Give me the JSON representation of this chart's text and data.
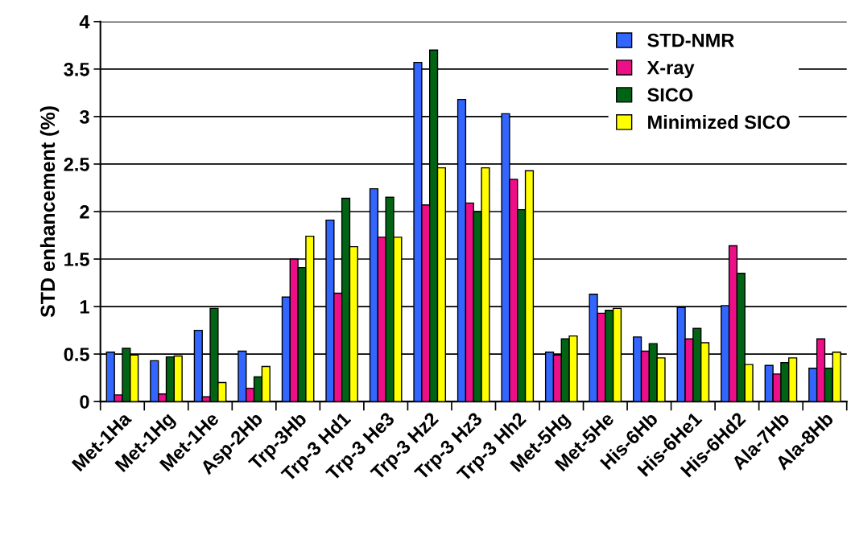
{
  "chart_data": {
    "type": "bar",
    "ylabel": "STD enhancement (%)",
    "categories": [
      "Met-1Ha",
      "Met-1Hg",
      "Met-1He",
      "Asp-2Hb",
      "Trp-3Hb",
      "Trp-3 Hd1",
      "Trp-3 He3",
      "Trp-3 Hz2",
      "Trp-3 Hz3",
      "Trp-3 Hh2",
      "Met-5Hg",
      "Met-5He",
      "His-6Hb",
      "His-6He1",
      "His-6Hd2",
      "Ala-7Hb",
      "Ala-8Hb"
    ],
    "series": [
      {
        "name": "STD-NMR",
        "color": "#3366ff",
        "values": [
          0.52,
          0.43,
          0.75,
          0.53,
          1.1,
          1.91,
          2.24,
          3.57,
          3.18,
          3.03,
          0.52,
          1.13,
          0.68,
          0.99,
          1.01,
          0.38,
          0.35
        ]
      },
      {
        "name": "X-ray",
        "color": "#ee0f88",
        "values": [
          0.07,
          0.08,
          0.05,
          0.14,
          1.5,
          1.14,
          1.73,
          2.07,
          2.09,
          2.34,
          0.49,
          0.93,
          0.53,
          0.66,
          1.64,
          0.29,
          0.66
        ]
      },
      {
        "name": "SICO",
        "color": "#006414",
        "values": [
          0.56,
          0.47,
          0.98,
          0.26,
          1.41,
          2.14,
          2.15,
          3.7,
          2.0,
          2.02,
          0.66,
          0.96,
          0.61,
          0.77,
          1.35,
          0.41,
          0.35
        ]
      },
      {
        "name": "Minimized SICO",
        "color": "#ffff00",
        "values": [
          0.49,
          0.48,
          0.2,
          0.37,
          1.74,
          1.63,
          1.73,
          2.46,
          2.46,
          2.43,
          0.69,
          0.98,
          0.46,
          0.62,
          0.39,
          0.46,
          0.52
        ]
      }
    ],
    "ylim": [
      0,
      4
    ],
    "yticks": [
      0,
      0.5,
      1,
      1.5,
      2,
      2.5,
      3,
      3.5,
      4
    ],
    "grid": "y",
    "legend": "top right"
  }
}
